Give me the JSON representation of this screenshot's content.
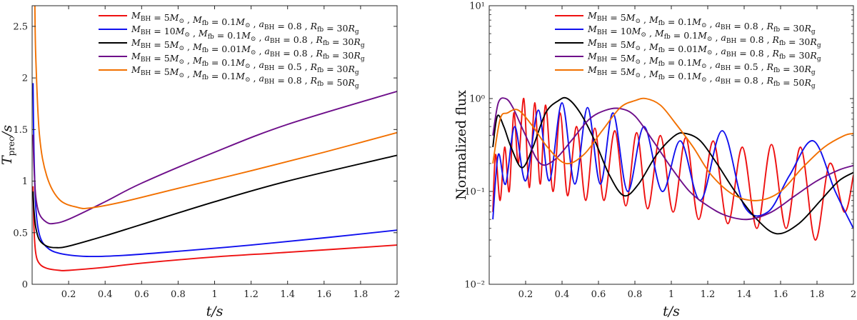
{
  "chart_data": [
    {
      "type": "line",
      "xlabel": "t/s",
      "ylabel": "T_prec/s",
      "xlim": [
        0,
        2
      ],
      "ylim": [
        0,
        2.7
      ],
      "yscale": "linear",
      "xticks": [
        "0.2",
        "0.4",
        "0.6",
        "0.8",
        "1",
        "1.2",
        "1.4",
        "1.6",
        "1.8",
        "2"
      ],
      "yticks": [
        "0",
        "0.5",
        "1",
        "1.5",
        "2",
        "2.5"
      ],
      "series": [
        {
          "name": "M_BH = 5M☉, M_fb = 0.1M☉, a_BH = 0.8, R_fb = 30R_g",
          "color": "#ee1111",
          "x": [
            0.005,
            0.01,
            0.02,
            0.04,
            0.08,
            0.15,
            0.2,
            0.4,
            0.6,
            1.0,
            1.4,
            2.0
          ],
          "y": [
            0.95,
            0.55,
            0.3,
            0.2,
            0.155,
            0.135,
            0.135,
            0.165,
            0.205,
            0.265,
            0.31,
            0.38
          ]
        },
        {
          "name": "M_BH = 10M☉, M_fb = 0.1M☉, a_BH = 0.8, R_fb = 30R_g",
          "color": "#1111ee",
          "x": [
            0.005,
            0.01,
            0.02,
            0.04,
            0.08,
            0.15,
            0.3,
            0.5,
            0.8,
            1.2,
            1.6,
            2.0
          ],
          "y": [
            1.95,
            1.3,
            0.75,
            0.48,
            0.36,
            0.3,
            0.27,
            0.28,
            0.32,
            0.38,
            0.45,
            0.525
          ]
        },
        {
          "name": "M_BH = 5M☉, M_fb = 0.01M☉, a_BH = 0.8, R_fb = 30R_g",
          "color": "#000000",
          "x": [
            0.005,
            0.01,
            0.02,
            0.04,
            0.08,
            0.13,
            0.2,
            0.4,
            0.6,
            1.0,
            1.4,
            2.0
          ],
          "y": [
            0.9,
            0.72,
            0.55,
            0.43,
            0.37,
            0.355,
            0.37,
            0.47,
            0.58,
            0.8,
            1.0,
            1.25
          ]
        },
        {
          "name": "M_BH = 5M☉, M_fb = 0.1M☉, a_BH = 0.5, R_fb = 30R_g",
          "color": "#6e0f8a",
          "x": [
            0.005,
            0.01,
            0.02,
            0.04,
            0.08,
            0.12,
            0.2,
            0.4,
            0.6,
            1.0,
            1.4,
            2.0
          ],
          "y": [
            1.45,
            1.15,
            0.85,
            0.68,
            0.6,
            0.59,
            0.63,
            0.8,
            0.98,
            1.28,
            1.55,
            1.87
          ]
        },
        {
          "name": "M_BH = 5M☉, M_fb = 0.1M☉, a_BH = 0.8, R_fb = 50R_g",
          "color": "#f27000",
          "x": [
            0.015,
            0.02,
            0.04,
            0.08,
            0.15,
            0.25,
            0.32,
            0.5,
            0.8,
            1.2,
            1.6,
            2.0
          ],
          "y": [
            2.7,
            2.2,
            1.45,
            1.05,
            0.82,
            0.745,
            0.74,
            0.8,
            0.93,
            1.1,
            1.28,
            1.47
          ]
        }
      ]
    },
    {
      "type": "line",
      "xlabel": "t/s",
      "ylabel": "Normalized flux",
      "xlim": [
        0,
        2
      ],
      "ylim": [
        0.01,
        10
      ],
      "yscale": "log",
      "xticks": [
        "0.2",
        "0.4",
        "0.6",
        "0.8",
        "1",
        "1.2",
        "1.4",
        "1.6",
        "1.8",
        "2"
      ],
      "yticks": [
        "10⁻²",
        "10⁻¹",
        "10⁰",
        "10¹"
      ],
      "series": [
        {
          "name": "M_BH = 5M☉, M_fb = 0.1M☉, a_BH = 0.8, R_fb = 30R_g",
          "color": "#ee1111",
          "x": [
            0.02,
            0.035,
            0.06,
            0.085,
            0.11,
            0.135,
            0.16,
            0.19,
            0.22,
            0.25,
            0.28,
            0.31,
            0.35,
            0.39,
            0.43,
            0.48,
            0.53,
            0.58,
            0.63,
            0.69,
            0.75,
            0.81,
            0.87,
            0.94,
            1.01,
            1.08,
            1.15,
            1.23,
            1.31,
            1.39,
            1.47,
            1.55,
            1.63,
            1.71,
            1.79,
            1.87,
            1.95,
            2.0
          ],
          "y": [
            0.06,
            0.25,
            0.08,
            0.3,
            0.1,
            0.7,
            0.2,
            1.0,
            0.11,
            0.9,
            0.12,
            0.85,
            0.1,
            0.7,
            0.09,
            0.5,
            0.08,
            0.48,
            0.08,
            0.45,
            0.07,
            0.43,
            0.065,
            0.4,
            0.06,
            0.38,
            0.05,
            0.35,
            0.045,
            0.3,
            0.04,
            0.32,
            0.04,
            0.3,
            0.03,
            0.2,
            0.06,
            0.15
          ]
        },
        {
          "name": "M_BH = 10M☉, M_fb = 0.1M☉, a_BH = 0.8, R_fb = 30R_g",
          "color": "#1111ee",
          "x": [
            0.02,
            0.05,
            0.09,
            0.14,
            0.2,
            0.27,
            0.33,
            0.4,
            0.47,
            0.54,
            0.61,
            0.68,
            0.76,
            0.85,
            0.95,
            1.05,
            1.16,
            1.28,
            1.4,
            1.53,
            1.65,
            1.78,
            1.9,
            2.0
          ],
          "y": [
            0.05,
            0.25,
            0.12,
            0.5,
            0.13,
            0.75,
            0.13,
            0.9,
            0.12,
            0.8,
            0.12,
            0.7,
            0.1,
            0.5,
            0.1,
            0.35,
            0.08,
            0.45,
            0.07,
            0.06,
            0.15,
            0.35,
            0.1,
            0.04
          ]
        },
        {
          "name": "M_BH = 5M☉, M_fb = 0.01M☉, a_BH = 0.8, R_fb = 30R_g",
          "color": "#000000",
          "x": [
            0.02,
            0.045,
            0.08,
            0.12,
            0.18,
            0.24,
            0.31,
            0.38,
            0.43,
            0.5,
            0.58,
            0.66,
            0.74,
            0.82,
            0.92,
            1.02,
            1.08,
            1.16,
            1.25,
            1.35,
            1.47,
            1.58,
            1.7,
            1.82,
            1.92,
            2.0
          ],
          "y": [
            0.3,
            0.65,
            0.5,
            0.3,
            0.18,
            0.3,
            0.7,
            0.95,
            1.0,
            0.7,
            0.35,
            0.15,
            0.09,
            0.12,
            0.25,
            0.4,
            0.42,
            0.35,
            0.2,
            0.1,
            0.05,
            0.035,
            0.045,
            0.08,
            0.13,
            0.16
          ]
        },
        {
          "name": "M_BH = 5M☉, M_fb = 0.1M☉, a_BH = 0.5, R_fb = 30R_g",
          "color": "#6e0f8a",
          "x": [
            0.02,
            0.05,
            0.09,
            0.13,
            0.2,
            0.28,
            0.36,
            0.45,
            0.55,
            0.64,
            0.72,
            0.8,
            0.9,
            1.0,
            1.1,
            1.2,
            1.3,
            1.42,
            1.55,
            1.68,
            1.8,
            1.92,
            2.0
          ],
          "y": [
            0.4,
            0.9,
            1.0,
            0.8,
            0.4,
            0.2,
            0.22,
            0.35,
            0.6,
            0.75,
            0.78,
            0.65,
            0.35,
            0.18,
            0.1,
            0.07,
            0.055,
            0.05,
            0.06,
            0.09,
            0.13,
            0.17,
            0.19
          ]
        },
        {
          "name": "M_BH = 5M☉, M_fb = 0.1M☉, a_BH = 0.8, R_fb = 50R_g",
          "color": "#f27000",
          "x": [
            0.02,
            0.06,
            0.1,
            0.16,
            0.24,
            0.32,
            0.42,
            0.52,
            0.62,
            0.72,
            0.8,
            0.86,
            0.94,
            1.02,
            1.12,
            1.22,
            1.35,
            1.48,
            1.6,
            1.72,
            1.84,
            1.95,
            2.0
          ],
          "y": [
            0.2,
            0.6,
            0.7,
            0.75,
            0.5,
            0.3,
            0.2,
            0.25,
            0.45,
            0.8,
            0.95,
            1.0,
            0.85,
            0.55,
            0.3,
            0.15,
            0.09,
            0.08,
            0.1,
            0.18,
            0.3,
            0.4,
            0.42
          ]
        }
      ]
    }
  ]
}
